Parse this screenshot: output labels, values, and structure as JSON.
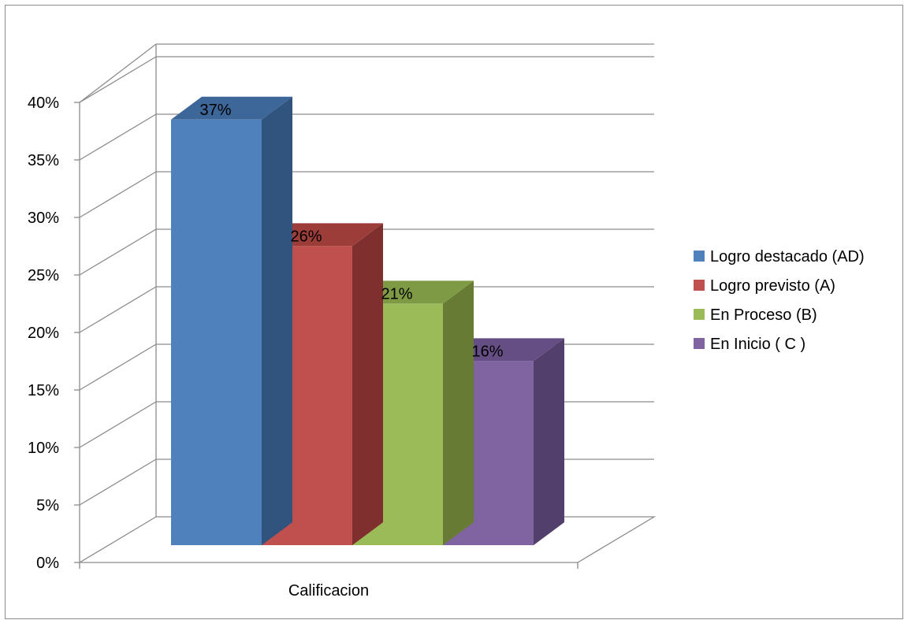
{
  "chart_data": {
    "type": "bar",
    "title": "",
    "xlabel": "",
    "ylabel": "",
    "categories": [
      "Calificacion"
    ],
    "ylim": [
      0,
      40
    ],
    "yticks": [
      "0%",
      "5%",
      "10%",
      "15%",
      "20%",
      "25%",
      "30%",
      "35%",
      "40%"
    ],
    "series": [
      {
        "name": "Logro destacado (AD)",
        "values": [
          37
        ],
        "label": "37%",
        "color": "#4F81BD",
        "side": "#31547E",
        "top": "#3D6699"
      },
      {
        "name": "Logro previsto (A)",
        "values": [
          26
        ],
        "label": "26%",
        "color": "#C0504D",
        "side": "#7F2F2D",
        "top": "#9C3D3A"
      },
      {
        "name": "En Proceso (B)",
        "values": [
          21
        ],
        "label": "21%",
        "color": "#9BBB59",
        "side": "#677B35",
        "top": "#7E9A44"
      },
      {
        "name": "En Inicio ( C )",
        "values": [
          16
        ],
        "label": "16%",
        "color": "#8064A2",
        "side": "#523F6B",
        "top": "#654E84"
      }
    ],
    "legend_position": "right",
    "grid": true,
    "style": "3d-clustered-column"
  }
}
